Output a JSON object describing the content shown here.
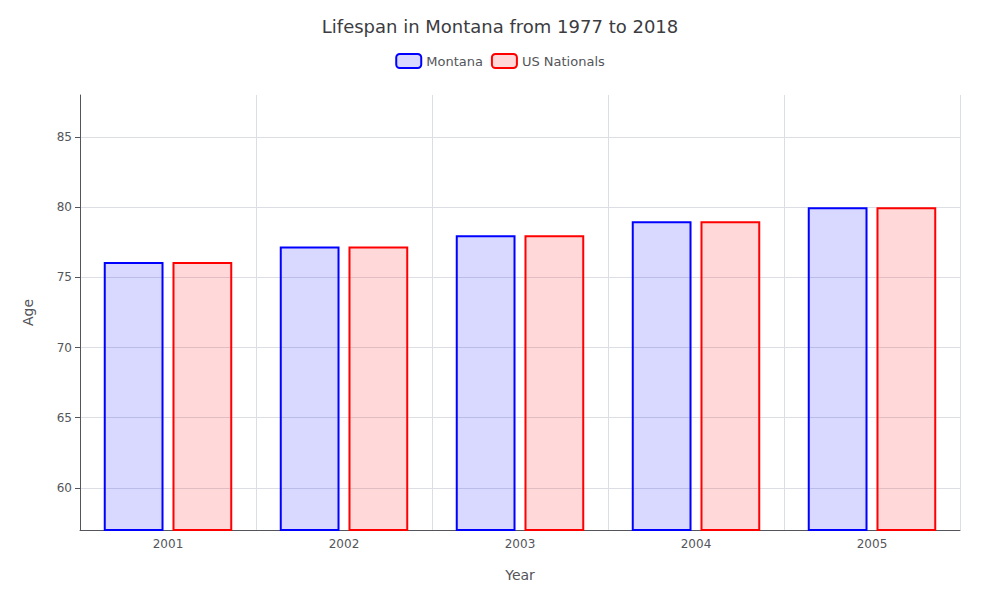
{
  "chart_data": {
    "type": "bar",
    "title": "Lifespan in Montana from 1977 to 2018",
    "xlabel": "Year",
    "ylabel": "Age",
    "categories": [
      "2001",
      "2002",
      "2003",
      "2004",
      "2005"
    ],
    "series": [
      {
        "name": "Montana",
        "color": "#0000ff",
        "values": [
          76.1,
          77.2,
          78.0,
          79.0,
          80.0
        ]
      },
      {
        "name": "US Nationals",
        "color": "#ff0000",
        "values": [
          76.1,
          77.2,
          78.0,
          79.0,
          80.0
        ]
      }
    ],
    "ylim": [
      57,
      88
    ],
    "yticks": [
      60,
      65,
      70,
      75,
      80,
      85
    ],
    "grid": true,
    "legend": "top"
  }
}
